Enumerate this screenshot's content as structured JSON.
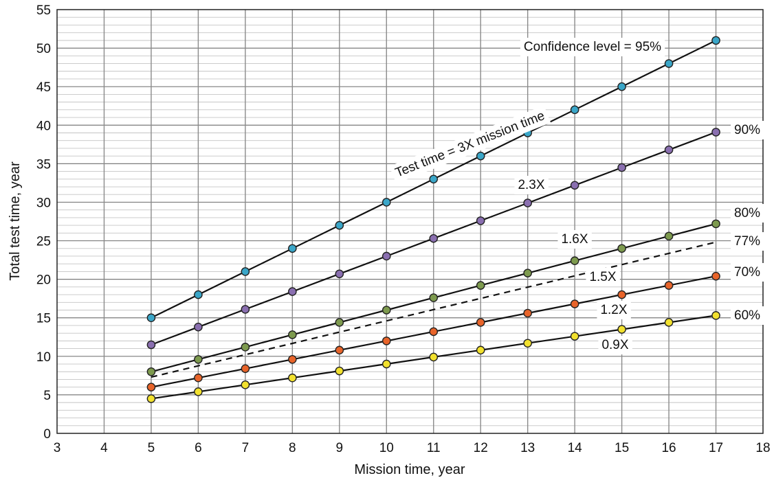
{
  "chart_data": {
    "type": "line",
    "xlabel": "Mission time, year",
    "ylabel": "Total test time, year",
    "xlim": [
      3,
      18
    ],
    "ylim": [
      0,
      55
    ],
    "x_ticks": [
      3,
      4,
      5,
      6,
      7,
      8,
      9,
      10,
      11,
      12,
      13,
      14,
      15,
      16,
      17,
      18
    ],
    "y_ticks": [
      0,
      5,
      10,
      15,
      20,
      25,
      30,
      35,
      40,
      45,
      50,
      55
    ],
    "grid": true,
    "x": [
      5,
      6,
      7,
      8,
      9,
      10,
      11,
      12,
      13,
      14,
      15,
      16,
      17
    ],
    "series": [
      {
        "name": "95%",
        "multiplier": "3X",
        "color": "#3aa6c8",
        "dashed": false,
        "markers": true,
        "values": [
          15,
          18,
          21,
          24,
          27,
          30,
          33,
          36,
          39,
          42,
          45,
          48,
          51
        ]
      },
      {
        "name": "90%",
        "multiplier": "2.3X",
        "color": "#8a6fb0",
        "dashed": false,
        "markers": true,
        "values": [
          11.5,
          13.8,
          16.1,
          18.4,
          20.7,
          23,
          25.3,
          27.6,
          29.9,
          32.2,
          34.5,
          36.8,
          39.1
        ]
      },
      {
        "name": "80%",
        "multiplier": "1.6X",
        "color": "#7d9a4e",
        "dashed": false,
        "markers": true,
        "values": [
          8,
          9.6,
          11.2,
          12.8,
          14.4,
          16,
          17.6,
          19.2,
          20.8,
          22.4,
          24,
          25.6,
          27.2
        ]
      },
      {
        "name": "77%",
        "multiplier": "1.5X",
        "color": "#111111",
        "dashed": true,
        "markers": false,
        "values": [
          7.3,
          8.76,
          10.22,
          11.68,
          13.14,
          14.6,
          16.06,
          17.52,
          18.98,
          20.44,
          21.9,
          23.36,
          24.82
        ]
      },
      {
        "name": "70%",
        "multiplier": "1.2X",
        "color": "#e8642a",
        "dashed": false,
        "markers": true,
        "values": [
          6,
          7.2,
          8.4,
          9.6,
          10.8,
          12,
          13.2,
          14.4,
          15.6,
          16.8,
          18,
          19.2,
          20.4
        ]
      },
      {
        "name": "60%",
        "multiplier": "0.9X",
        "color": "#f2e12e",
        "dashed": false,
        "markers": true,
        "values": [
          4.5,
          5.4,
          6.3,
          7.2,
          8.1,
          9,
          9.9,
          10.8,
          11.7,
          12.6,
          13.5,
          14.4,
          15.3
        ]
      }
    ],
    "annotations": {
      "confidence": "Confidence level = 95%",
      "test_time": "Test time = 3X mission time"
    }
  }
}
